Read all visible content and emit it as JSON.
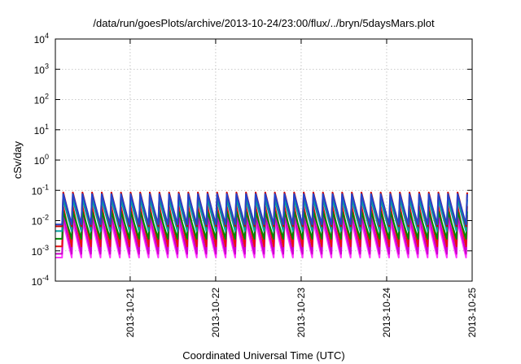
{
  "chart_data": {
    "type": "line",
    "title": "/data/run/goesPlots/archive/2013-10-24/23:00/flux/../bryn/5daysMars.plot",
    "xlabel": "Coordinated Universal Time (UTC)",
    "ylabel": "cSv/day",
    "x_range": [
      "2013-10-20T03:00",
      "2013-10-25T00:00"
    ],
    "x_ticks": [
      "2013-10-21",
      "2013-10-22",
      "2013-10-23",
      "2013-10-24",
      "2013-10-25"
    ],
    "y_scale": "log",
    "ylim": [
      0.0001,
      10000
    ],
    "y_ticks": [
      {
        "value": 0.0001,
        "base": "10",
        "exp": "-4"
      },
      {
        "value": 0.001,
        "base": "10",
        "exp": "-3"
      },
      {
        "value": 0.01,
        "base": "10",
        "exp": "-2"
      },
      {
        "value": 0.1,
        "base": "10",
        "exp": "-1"
      },
      {
        "value": 1,
        "base": "10",
        "exp": "0"
      },
      {
        "value": 10,
        "base": "10",
        "exp": "1"
      },
      {
        "value": 100,
        "base": "10",
        "exp": "2"
      },
      {
        "value": 1000,
        "base": "10",
        "exp": "3"
      },
      {
        "value": 10000,
        "base": "10",
        "exp": "4"
      }
    ],
    "grid": true,
    "series_pattern": {
      "oscillation_period_hours": 2.7,
      "description": "sawtooth dose-rate traces repeating through the window"
    },
    "series": [
      {
        "color": "#cc0000",
        "peak": 0.085,
        "trough": 0.0065
      },
      {
        "color": "#2244cc",
        "peak": 0.075,
        "trough": 0.0075
      },
      {
        "color": "#00a0a0",
        "peak": 0.05,
        "trough": 0.0045
      },
      {
        "color": "#008800",
        "peak": 0.02,
        "trough": 0.0025
      },
      {
        "color": "#e81010",
        "peak": 0.03,
        "trough": 0.0014
      },
      {
        "color": "#cc00cc",
        "peak": 0.015,
        "trough": 0.0008
      },
      {
        "color": "#ff33ff",
        "peak": 0.009,
        "trough": 0.0006
      }
    ]
  }
}
